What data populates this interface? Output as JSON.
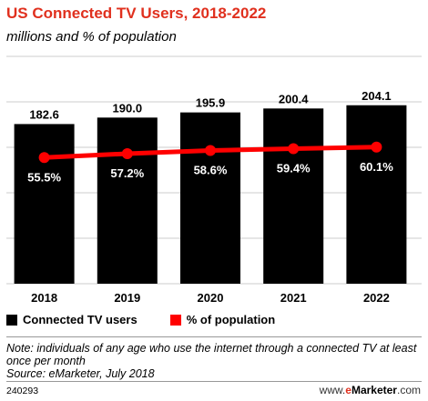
{
  "title": "US Connected TV Users, 2018-2022",
  "subtitle": "millions and % of population",
  "chart_data": {
    "type": "bar",
    "categories": [
      "2018",
      "2019",
      "2020",
      "2021",
      "2022"
    ],
    "series": [
      {
        "name": "Connected TV users",
        "kind": "bar",
        "values": [
          182.6,
          190.0,
          195.9,
          200.4,
          204.1
        ],
        "labels": [
          "182.6",
          "190.0",
          "195.9",
          "200.4",
          "204.1"
        ]
      },
      {
        "name": "% of population",
        "kind": "line",
        "values": [
          55.5,
          57.2,
          58.6,
          59.4,
          60.1
        ],
        "labels": [
          "55.5%",
          "57.2%",
          "58.6%",
          "59.4%",
          "60.1%"
        ]
      }
    ],
    "ylim_bars": [
      0,
      260
    ],
    "ylim_line": [
      0,
      100
    ],
    "grid": true,
    "legend_position": "bottom",
    "colors": {
      "bar": "#000000",
      "line": "#ff0000",
      "grid": "#cccccc"
    }
  },
  "legend": {
    "bar_label": "Connected TV users",
    "line_label": "% of population"
  },
  "note": "Note: individuals of any age who use the internet through a connected TV at least once per month",
  "source": "Source: eMarketer, July 2018",
  "footer_id": "240293",
  "logo": {
    "prefix": "www.",
    "brand_e": "e",
    "brand": "Marketer",
    "suffix": ".com"
  }
}
